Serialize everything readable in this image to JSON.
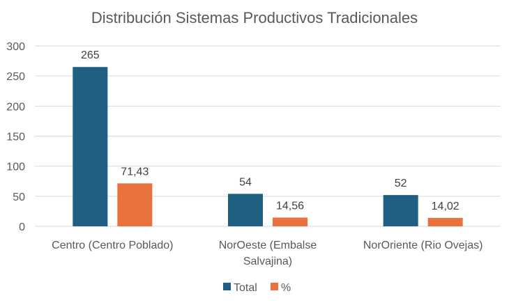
{
  "chart_data": {
    "type": "bar",
    "title": "Distribución Sistemas Productivos Tradicionales",
    "categories": [
      [
        "Centro (Centro Poblado)"
      ],
      [
        "NorOeste (Embalse",
        "Salvajina)"
      ],
      [
        "NorOriente (Rio Ovejas)"
      ]
    ],
    "series": [
      {
        "name": "Total",
        "values": [
          265,
          54,
          52
        ],
        "labels": [
          "265",
          "54",
          "52"
        ],
        "color": "#1f5f82"
      },
      {
        "name": "%",
        "values": [
          71.43,
          14.56,
          14.02
        ],
        "labels": [
          "71,43",
          "14,56",
          "14,02"
        ],
        "color": "#e8713c"
      }
    ],
    "ylim": [
      0,
      300
    ],
    "yticks": [
      0,
      50,
      100,
      150,
      200,
      250,
      300
    ],
    "grid": true,
    "legend_position": "bottom",
    "gridline_color": "#d9d9d9"
  }
}
